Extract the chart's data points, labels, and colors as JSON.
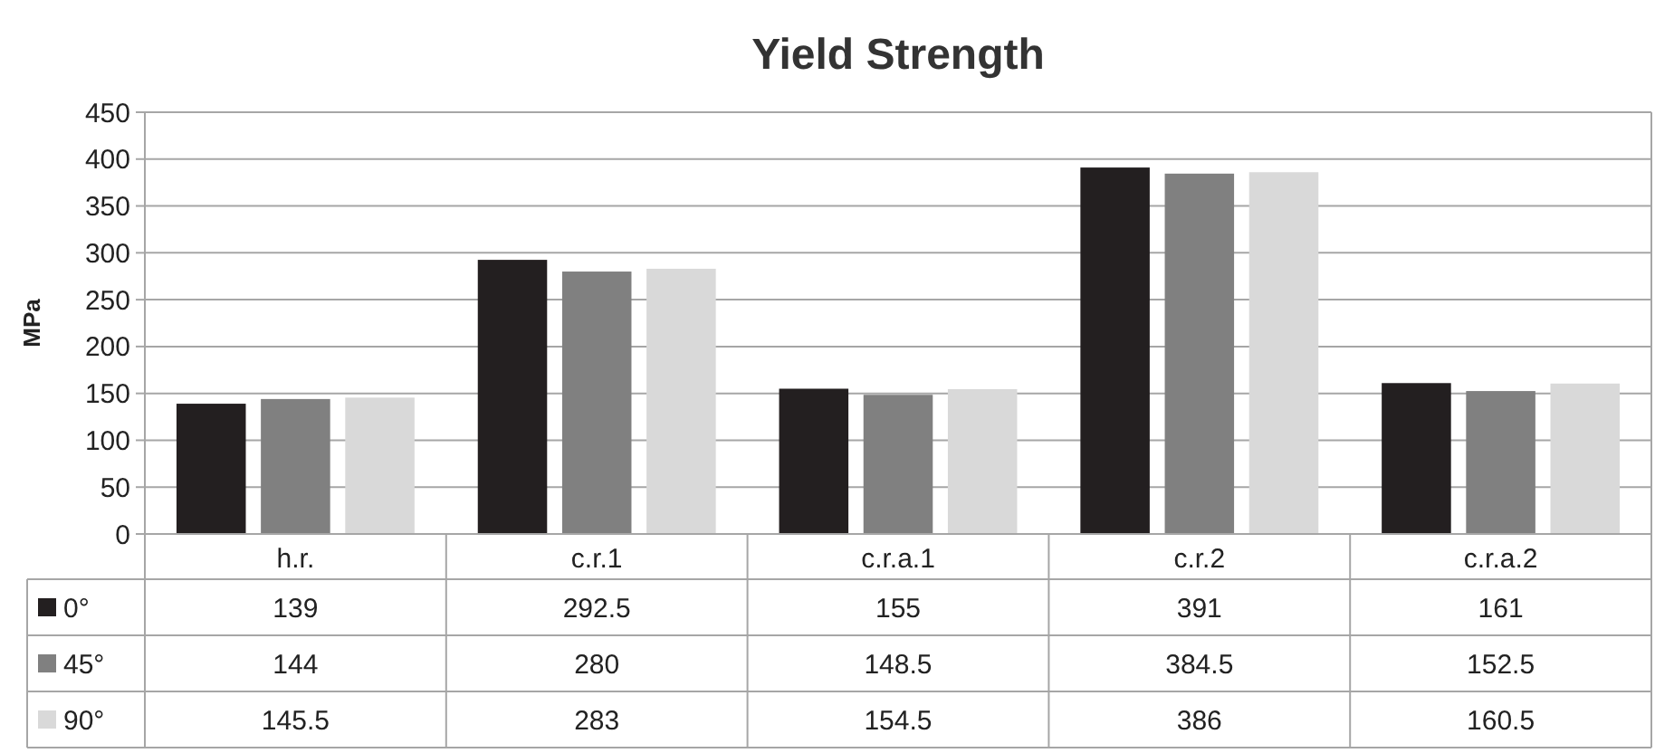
{
  "chart_data": {
    "type": "bar",
    "title": "Yield Strength",
    "ylabel": "MPa",
    "categories": [
      "h.r.",
      "c.r.1",
      "c.r.a.1",
      "c.r.2",
      "c.r.a.2"
    ],
    "series": [
      {
        "name": "0°",
        "color": "#231f20",
        "values": [
          139,
          292.5,
          155,
          391,
          161
        ]
      },
      {
        "name": "45°",
        "color": "#808080",
        "values": [
          144,
          280,
          148.5,
          384.5,
          152.5
        ]
      },
      {
        "name": "90°",
        "color": "#d9d9d9",
        "values": [
          145.5,
          283,
          154.5,
          386,
          160.5
        ]
      }
    ],
    "ylim": [
      0,
      450
    ],
    "yticks": [
      0,
      50,
      100,
      150,
      200,
      250,
      300,
      350,
      400,
      450
    ],
    "grid": "y",
    "legend": "bottom",
    "data_labels": true
  }
}
